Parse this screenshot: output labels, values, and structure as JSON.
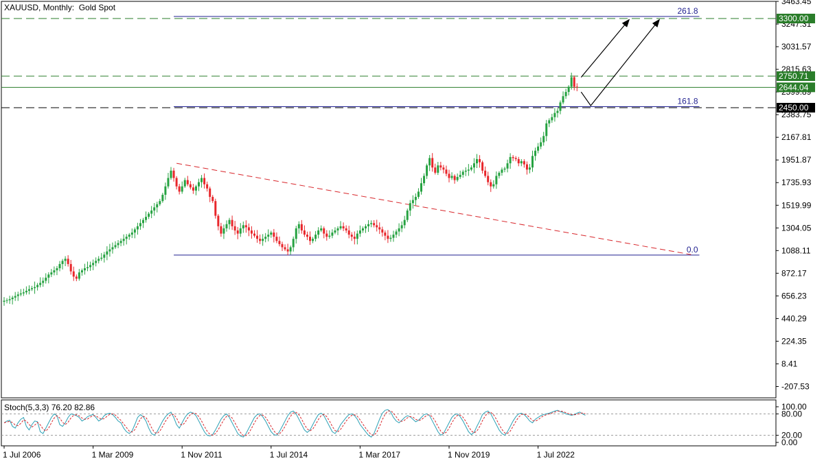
{
  "header": {
    "title": "XAUUSD, Monthly:  Gold Spot",
    "stoch_label": "Stoch(5,3,3) 76.20 82.86"
  },
  "colors": {
    "bull": "#26a241",
    "bear": "#e8262b",
    "fib": "#1f1f8f",
    "trend": "#d8262b",
    "level": "#2a7d2a",
    "stoch_main": "#2aa0b5",
    "stoch_signal": "#d8262b",
    "tag_green": "#2a7d2a",
    "tag_black": "#000000"
  },
  "chart_data": [
    {
      "type": "candlestick",
      "title": "XAUUSD, Monthly:  Gold Spot",
      "ylim": [
        -315.41,
        3463.45
      ],
      "price_ticks": [
        "3463.45",
        "3247.31",
        "3031.57",
        "2815.63",
        "2599.89",
        "2383.75",
        "2167.81",
        "1951.87",
        "1735.93",
        "1519.99",
        "1304.05",
        "1088.11",
        "872.17",
        "656.23",
        "440.29",
        "224.35",
        "8.41",
        "-207.53"
      ],
      "time_labels": [
        {
          "label": "1 Jul 2006",
          "index": 0
        },
        {
          "label": "1 Mar 2009",
          "index": 32
        },
        {
          "label": "1 Nov 2011",
          "index": 64
        },
        {
          "label": "1 Jul 2014",
          "index": 96
        },
        {
          "label": "1 Mar 2017",
          "index": 128
        },
        {
          "label": "1 Nov 2019",
          "index": 160
        },
        {
          "label": "1 Jul 2022",
          "index": 192
        }
      ],
      "horizontal_levels": [
        {
          "price": 3300.0,
          "label": "3300.00",
          "style": "dashed",
          "tag": "green"
        },
        {
          "price": 2750.71,
          "label": "2750.71",
          "style": "dashed",
          "tag": "green"
        },
        {
          "price": 2644.04,
          "label": "2644.04",
          "style": "solid",
          "tag": "green"
        },
        {
          "price": 2450.0,
          "label": "2450.00",
          "style": "dashed",
          "tag": "black"
        }
      ],
      "fibonacci": [
        {
          "label": "261.8",
          "price": 3320
        },
        {
          "label": "161.8",
          "price": 2460
        },
        {
          "label": "0.0",
          "price": 1045
        }
      ],
      "trendline": {
        "from": {
          "index": 62,
          "price": 1920
        },
        "to": {
          "index": 247,
          "price": 1050
        }
      },
      "closes": [
        610,
        615,
        625,
        640,
        655,
        670,
        680,
        690,
        705,
        720,
        730,
        740,
        760,
        780,
        800,
        830,
        860,
        880,
        900,
        920,
        960,
        990,
        1010,
        960,
        890,
        840,
        820,
        880,
        900,
        920,
        930,
        950,
        970,
        990,
        1010,
        1020,
        1050,
        1080,
        1100,
        1120,
        1140,
        1160,
        1180,
        1200,
        1220,
        1240,
        1260,
        1290,
        1320,
        1350,
        1380,
        1410,
        1440,
        1470,
        1500,
        1530,
        1560,
        1620,
        1700,
        1780,
        1850,
        1780,
        1700,
        1650,
        1700,
        1760,
        1720,
        1690,
        1660,
        1700,
        1740,
        1780,
        1720,
        1680,
        1600,
        1560,
        1420,
        1320,
        1250,
        1300,
        1340,
        1380,
        1320,
        1280,
        1250,
        1300,
        1330,
        1310,
        1280,
        1250,
        1230,
        1200,
        1180,
        1200,
        1220,
        1240,
        1260,
        1220,
        1180,
        1150,
        1120,
        1100,
        1080,
        1120,
        1200,
        1300,
        1340,
        1280,
        1240,
        1220,
        1180,
        1200,
        1240,
        1280,
        1300,
        1250,
        1220,
        1230,
        1260,
        1280,
        1300,
        1320,
        1300,
        1280,
        1240,
        1220,
        1200,
        1250,
        1280,
        1300,
        1320,
        1340,
        1350,
        1330,
        1310,
        1290,
        1260,
        1230,
        1200,
        1210,
        1240,
        1270,
        1300,
        1330,
        1380,
        1470,
        1540,
        1570,
        1600,
        1650,
        1730,
        1800,
        1900,
        1970,
        1880,
        1830,
        1900,
        1880,
        1860,
        1820,
        1780,
        1800,
        1760,
        1790,
        1810,
        1840,
        1850,
        1860,
        1880,
        1920,
        1960,
        1930,
        1850,
        1800,
        1740,
        1700,
        1720,
        1800,
        1830,
        1860,
        1870,
        1920,
        1980,
        1970,
        1960,
        1920,
        1940,
        1910,
        1860,
        1880,
        1990,
        2040,
        2080,
        2120,
        2180,
        2300,
        2330,
        2360,
        2400,
        2420,
        2500,
        2560,
        2600,
        2650,
        2740,
        2650,
        2644
      ],
      "stoch_main": [
        55,
        60,
        62,
        45,
        40,
        55,
        65,
        70,
        45,
        35,
        50,
        60,
        58,
        30,
        25,
        40,
        55,
        70,
        80,
        75,
        50,
        45,
        55,
        70,
        80,
        78,
        75,
        70,
        60,
        65,
        72,
        76,
        78,
        70,
        60,
        65,
        75,
        80,
        82,
        78,
        70,
        60,
        55,
        40,
        30,
        25,
        32,
        50,
        70,
        78,
        72,
        60,
        40,
        25,
        20,
        30,
        45,
        60,
        72,
        80,
        85,
        70,
        50,
        40,
        55,
        70,
        80,
        85,
        82,
        75,
        60,
        45,
        30,
        20,
        18,
        22,
        35,
        50,
        65,
        75,
        80,
        70,
        55,
        40,
        25,
        18,
        15,
        25,
        40,
        55,
        70,
        78,
        80,
        72,
        60,
        45,
        30,
        22,
        20,
        30,
        45,
        60,
        75,
        85,
        88,
        80,
        65,
        50,
        35,
        28,
        35,
        50,
        65,
        78,
        82,
        75,
        60,
        45,
        30,
        25,
        35,
        50,
        60,
        70,
        78,
        80,
        75,
        65,
        50,
        40,
        30,
        20,
        15,
        25,
        45,
        65,
        82,
        90,
        92,
        85,
        70,
        60,
        55,
        62,
        70,
        75,
        72,
        65,
        58,
        62,
        70,
        78,
        80,
        75,
        60,
        45,
        30,
        20,
        25,
        40,
        55,
        70,
        78,
        80,
        72,
        60,
        45,
        30,
        22,
        28,
        45,
        60,
        78,
        85,
        88,
        80,
        65,
        50,
        35,
        25,
        20,
        30,
        45,
        60,
        72,
        80,
        82,
        78,
        70,
        60,
        55,
        65,
        70,
        75,
        78,
        80,
        82,
        85,
        88,
        90,
        86,
        84,
        80,
        78,
        76,
        78,
        82,
        85,
        80,
        76
      ],
      "stoch_ticks": [
        "100.00",
        "80.00",
        "20.00",
        "0.00"
      ]
    }
  ]
}
